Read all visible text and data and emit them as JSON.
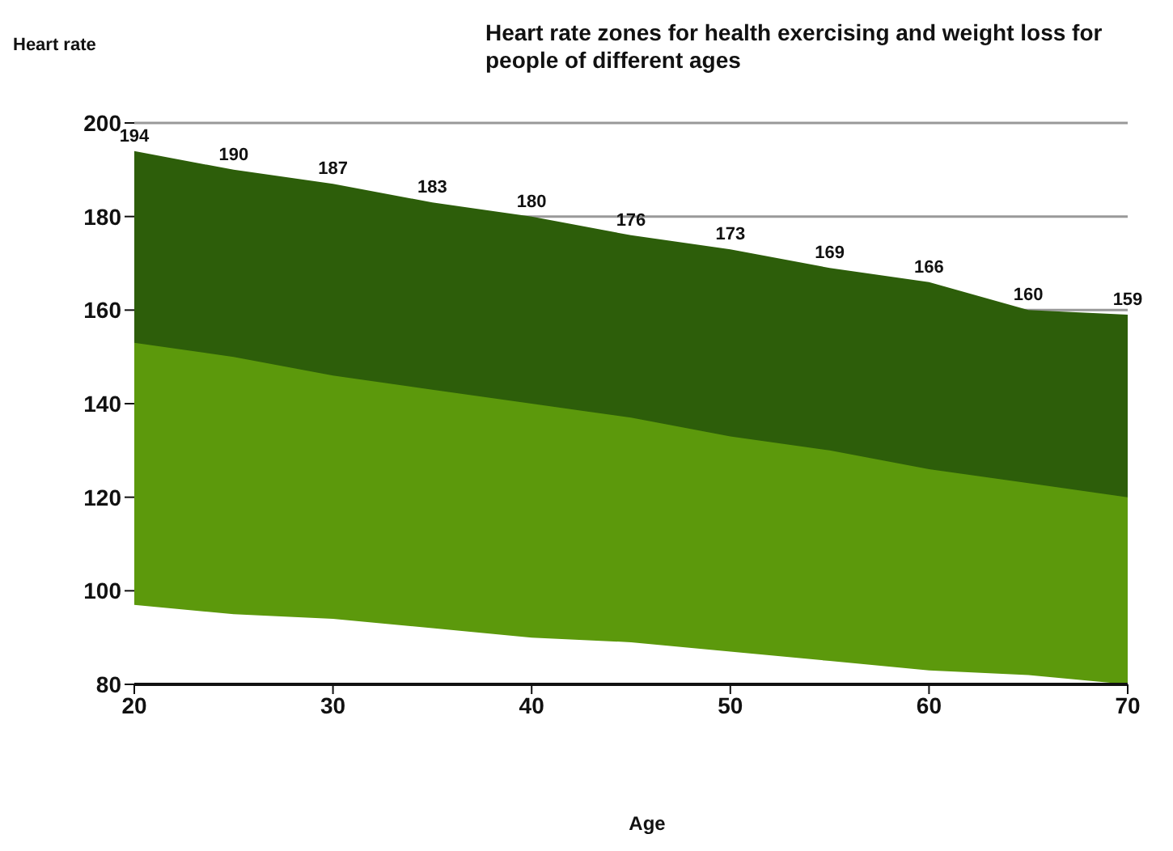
{
  "chart_data": {
    "type": "area",
    "title": "Heart rate zones for health exercising and weight loss for people of different ages",
    "xlabel": "Age",
    "ylabel": "Heart rate",
    "x": [
      20,
      25,
      30,
      35,
      40,
      45,
      50,
      55,
      60,
      65,
      70
    ],
    "series": [
      {
        "color": "#2d5e0a",
        "values": [
          194,
          190,
          187,
          183,
          180,
          176,
          173,
          169,
          166,
          160,
          159
        ],
        "value_labels": [
          "194",
          "190",
          "187",
          "183",
          "180",
          "176",
          "173",
          "169",
          "166",
          "160",
          "159"
        ]
      },
      {
        "color": "#5c990c",
        "values": [
          153,
          150,
          146,
          143,
          140,
          137,
          133,
          130,
          126,
          123,
          120
        ]
      },
      {
        "color": "#ffffff",
        "values": [
          97,
          95,
          94,
          92,
          90,
          89,
          87,
          85,
          83,
          82,
          80
        ]
      }
    ],
    "xlim": [
      20,
      70
    ],
    "xticks": [
      20,
      30,
      40,
      50,
      60,
      70
    ],
    "ylim": [
      80,
      200
    ],
    "yticks": [
      80,
      100,
      120,
      140,
      160,
      180,
      200
    ],
    "grid": "y"
  }
}
